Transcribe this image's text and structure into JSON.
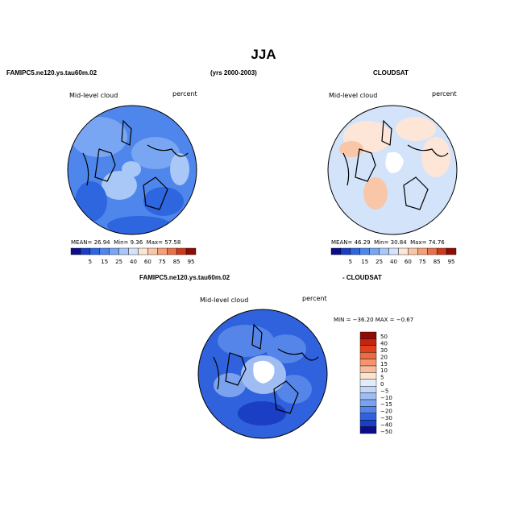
{
  "title": "JJA",
  "panels": {
    "model": {
      "header_left": "FAMIPC5.ne120.ys.tau60m.02",
      "header_right": "(yrs 2000-2003)",
      "field_label": "Mid-level cloud",
      "unit_label": "percent",
      "stats": {
        "mean_label": "MEAN=",
        "mean": "26.94",
        "min_label": "Min=",
        "min": "9.36",
        "max_label": "Max=",
        "max": "57.58"
      }
    },
    "obs": {
      "header": "CLOUDSAT",
      "field_label": "Mid-level cloud",
      "unit_label": "percent",
      "stats": {
        "mean_label": "MEAN=",
        "mean": "46.29",
        "min_label": "Min=",
        "min": "30.84",
        "max_label": "Max=",
        "max": "74.76"
      }
    },
    "diff": {
      "header_left": "FAMIPC5.ne120.ys.tau60m.02",
      "header_right": "- CLOUDSAT",
      "field_label": "Mid-level cloud",
      "unit_label": "percent",
      "minmax": "MIN = −36.20  MAX =  −0.67"
    }
  },
  "colorbar_abs": {
    "colors": [
      "#0d0d8c",
      "#1a3fc4",
      "#2e66e0",
      "#4f86ec",
      "#79a6f2",
      "#a9c8f7",
      "#d3e3fa",
      "#fde6d8",
      "#f9c6a8",
      "#f39f78",
      "#e8704a",
      "#cc3b1e",
      "#8e0c06"
    ],
    "ticks": [
      "5",
      "15",
      "25",
      "40",
      "60",
      "75",
      "85",
      "95"
    ]
  },
  "colorbar_diff": {
    "colors": [
      "#8e0c06",
      "#c42410",
      "#e0401c",
      "#ee6a40",
      "#f49470",
      "#f8bb9c",
      "#fde2d0",
      "#e2ecfb",
      "#c2d6f7",
      "#9fbdf3",
      "#7aa2ee",
      "#5585e8",
      "#2f62dc",
      "#1a3ec4",
      "#0d0d8c"
    ],
    "ticks": [
      "50",
      "40",
      "30",
      "20",
      "15",
      "10",
      "5",
      "0",
      "−5",
      "−10",
      "−15",
      "−20",
      "−30",
      "−40",
      "−50"
    ]
  }
}
